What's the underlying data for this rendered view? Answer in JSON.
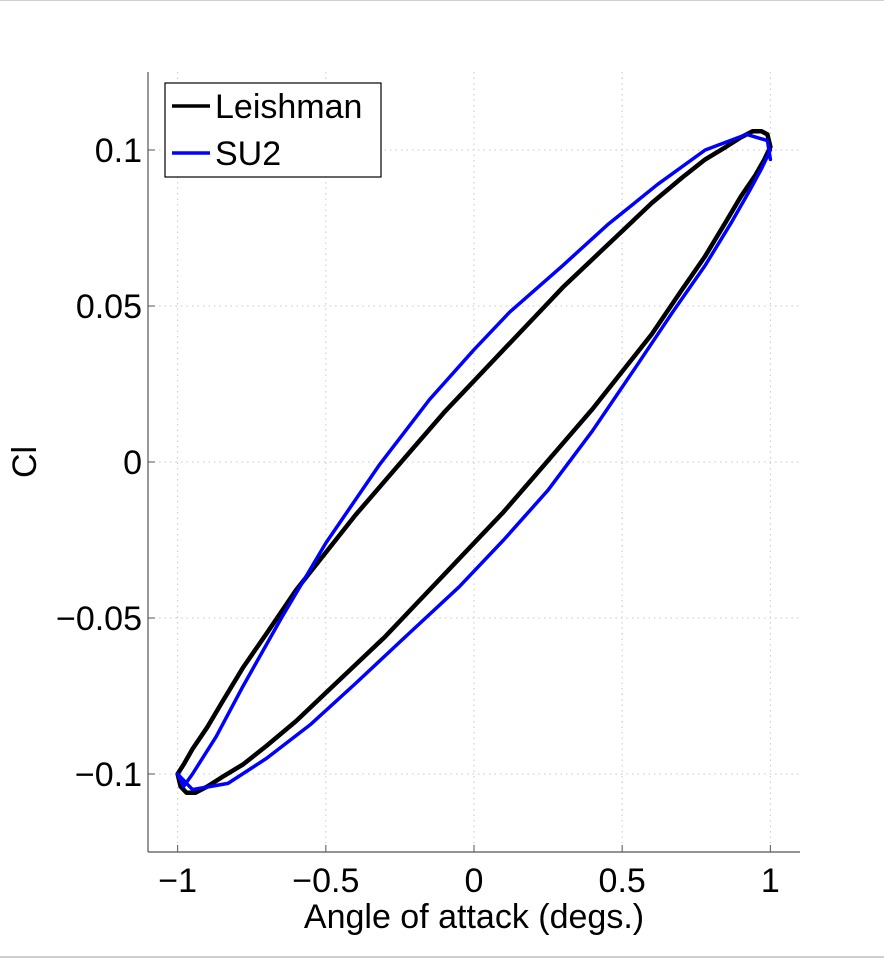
{
  "chart_data": {
    "type": "line",
    "title": "",
    "xlabel": "Angle of attack (degs.)",
    "ylabel": "Cl",
    "xlim": [
      -1.1,
      1.1
    ],
    "ylim": [
      -0.125,
      0.125
    ],
    "xticks": [
      -1,
      -0.5,
      0,
      0.5,
      1
    ],
    "xtick_labels": [
      "−1",
      "−0.5",
      "0",
      "0.5",
      "1"
    ],
    "yticks": [
      -0.1,
      -0.05,
      0,
      0.05,
      0.1
    ],
    "ytick_labels": [
      "−0.1",
      "−0.05",
      "0",
      "0.05",
      "0.1"
    ],
    "grid": true,
    "legend_position": "top-left",
    "series": [
      {
        "name": "Leishman",
        "color": "#000000",
        "x": [
          1.0,
          0.99,
          0.97,
          0.94,
          0.9,
          0.85,
          0.78,
          0.7,
          0.6,
          0.5,
          0.4,
          0.3,
          0.2,
          0.1,
          0.0,
          -0.1,
          -0.2,
          -0.3,
          -0.4,
          -0.5,
          -0.6,
          -0.7,
          -0.78,
          -0.85,
          -0.9,
          -0.95,
          -0.98,
          -1.0,
          -0.99,
          -0.97,
          -0.94,
          -0.9,
          -0.85,
          -0.78,
          -0.7,
          -0.6,
          -0.5,
          -0.4,
          -0.3,
          -0.2,
          -0.1,
          0.0,
          0.1,
          0.2,
          0.3,
          0.4,
          0.5,
          0.6,
          0.7,
          0.78,
          0.85,
          0.9,
          0.95,
          0.98,
          1.0
        ],
        "y": [
          0.101,
          0.105,
          0.106,
          0.106,
          0.104,
          0.101,
          0.097,
          0.091,
          0.083,
          0.074,
          0.065,
          0.056,
          0.046,
          0.036,
          0.026,
          0.016,
          0.005,
          -0.006,
          -0.017,
          -0.029,
          -0.041,
          -0.055,
          -0.066,
          -0.077,
          -0.085,
          -0.092,
          -0.097,
          -0.1,
          -0.104,
          -0.106,
          -0.106,
          -0.104,
          -0.101,
          -0.097,
          -0.091,
          -0.083,
          -0.074,
          -0.065,
          -0.056,
          -0.046,
          -0.036,
          -0.026,
          -0.016,
          -0.005,
          0.006,
          0.017,
          0.029,
          0.041,
          0.055,
          0.066,
          0.077,
          0.085,
          0.092,
          0.097,
          0.101
        ]
      },
      {
        "name": "SU2",
        "color": "#0000ff",
        "x": [
          1.0,
          0.99,
          0.92,
          0.78,
          0.62,
          0.45,
          0.3,
          0.12,
          0.0,
          -0.15,
          -0.32,
          -0.5,
          -0.65,
          -0.78,
          -0.87,
          -0.95,
          -0.98,
          -1.0,
          -0.95,
          -0.83,
          -0.7,
          -0.55,
          -0.4,
          -0.22,
          -0.05,
          0.1,
          0.25,
          0.4,
          0.55,
          0.67,
          0.78,
          0.87,
          0.93,
          0.97,
          1.0
        ],
        "y": [
          0.097,
          0.103,
          0.105,
          0.1,
          0.089,
          0.076,
          0.063,
          0.048,
          0.036,
          0.02,
          -0.001,
          -0.026,
          -0.05,
          -0.072,
          -0.088,
          -0.1,
          -0.104,
          -0.1,
          -0.105,
          -0.103,
          -0.095,
          -0.084,
          -0.071,
          -0.055,
          -0.04,
          -0.025,
          -0.009,
          0.01,
          0.031,
          0.048,
          0.063,
          0.077,
          0.087,
          0.094,
          0.1
        ]
      }
    ]
  }
}
